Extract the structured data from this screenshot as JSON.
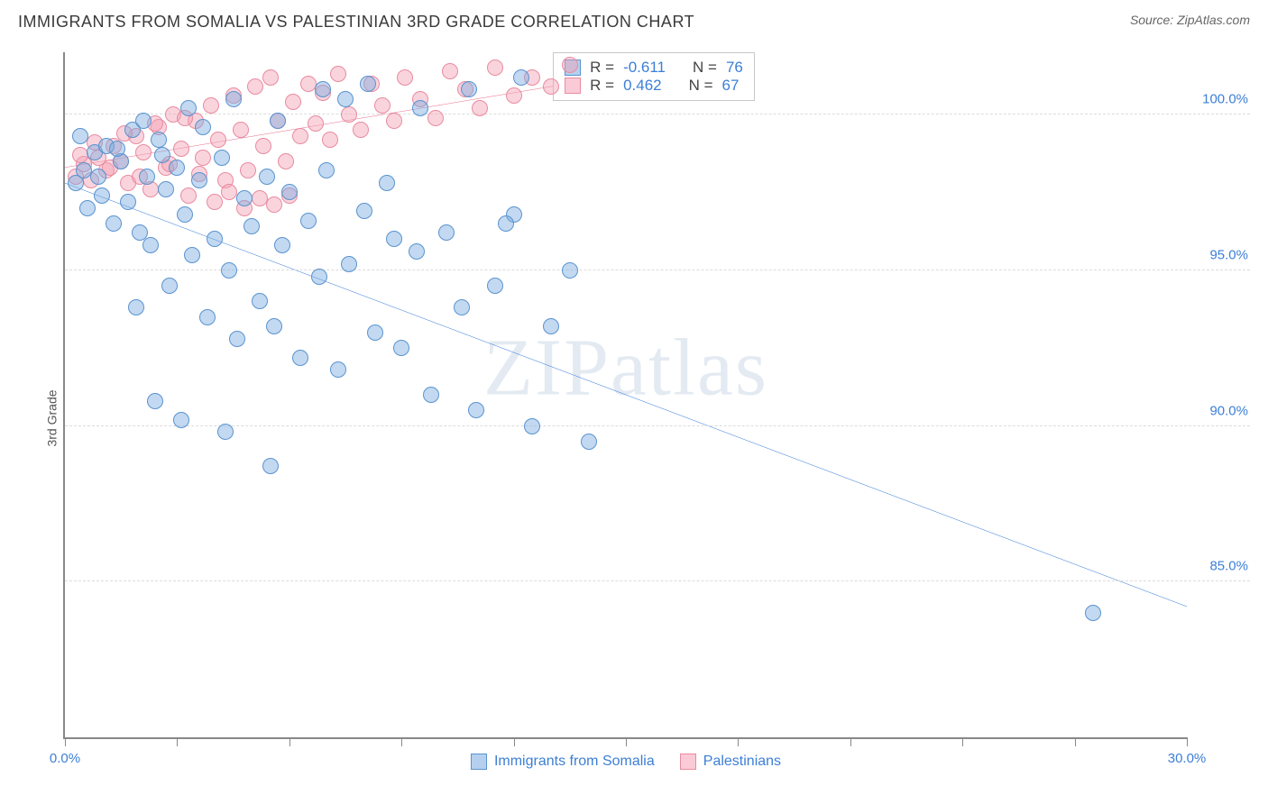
{
  "header": {
    "title": "IMMIGRANTS FROM SOMALIA VS PALESTINIAN 3RD GRADE CORRELATION CHART",
    "source": "Source: ZipAtlas.com"
  },
  "chart": {
    "type": "scatter",
    "y_axis_label": "3rd Grade",
    "watermark": "ZIPatlas",
    "xlim": [
      0,
      30
    ],
    "ylim": [
      80,
      102
    ],
    "y_gridlines": [
      85,
      90,
      95,
      100
    ],
    "y_tick_labels": [
      "85.0%",
      "90.0%",
      "95.0%",
      "100.0%"
    ],
    "x_ticks": [
      0,
      3,
      6,
      9,
      12,
      15,
      18,
      21,
      24,
      27,
      30
    ],
    "x_tick_labels": {
      "0": "0.0%",
      "30": "30.0%"
    },
    "background_color": "#ffffff",
    "grid_color": "#dcdcdc",
    "axis_color": "#888888",
    "label_fontsize": 15,
    "label_color": "#3c7fd6",
    "marker_radius": 9,
    "series": {
      "blue": {
        "name": "Immigrants from Somalia",
        "fill": "rgba(120,170,225,0.45)",
        "stroke": "#5a93cf",
        "r_value": "-0.611",
        "n_value": "76",
        "trend": {
          "x1": 0,
          "y1": 97.8,
          "x2": 30,
          "y2": 84.2,
          "color": "#2a73d6",
          "width": 2
        },
        "points": [
          [
            0.3,
            97.8
          ],
          [
            0.5,
            98.2
          ],
          [
            0.6,
            97.0
          ],
          [
            0.8,
            98.8
          ],
          [
            1.0,
            97.4
          ],
          [
            1.1,
            99.0
          ],
          [
            1.3,
            96.5
          ],
          [
            1.5,
            98.5
          ],
          [
            1.7,
            97.2
          ],
          [
            1.8,
            99.5
          ],
          [
            2.0,
            96.2
          ],
          [
            2.2,
            98.0
          ],
          [
            2.3,
            95.8
          ],
          [
            2.5,
            99.2
          ],
          [
            2.7,
            97.6
          ],
          [
            2.8,
            94.5
          ],
          [
            3.0,
            98.3
          ],
          [
            3.2,
            96.8
          ],
          [
            3.4,
            95.5
          ],
          [
            3.6,
            97.9
          ],
          [
            3.8,
            93.5
          ],
          [
            4.0,
            96.0
          ],
          [
            4.2,
            98.6
          ],
          [
            4.4,
            95.0
          ],
          [
            4.6,
            92.8
          ],
          [
            4.8,
            97.3
          ],
          [
            5.0,
            96.4
          ],
          [
            5.2,
            94.0
          ],
          [
            5.4,
            98.0
          ],
          [
            5.6,
            93.2
          ],
          [
            5.8,
            95.8
          ],
          [
            6.0,
            97.5
          ],
          [
            6.3,
            92.2
          ],
          [
            6.5,
            96.6
          ],
          [
            6.8,
            94.8
          ],
          [
            7.0,
            98.2
          ],
          [
            7.3,
            91.8
          ],
          [
            7.6,
            95.2
          ],
          [
            8.0,
            96.9
          ],
          [
            8.3,
            93.0
          ],
          [
            8.6,
            97.8
          ],
          [
            9.0,
            92.5
          ],
          [
            9.4,
            95.6
          ],
          [
            9.8,
            91.0
          ],
          [
            10.2,
            96.2
          ],
          [
            10.6,
            93.8
          ],
          [
            11.0,
            90.5
          ],
          [
            11.5,
            94.5
          ],
          [
            12.0,
            96.8
          ],
          [
            12.5,
            90.0
          ],
          [
            13.0,
            93.2
          ],
          [
            13.5,
            95.0
          ],
          [
            14.0,
            89.5
          ],
          [
            3.1,
            90.2
          ],
          [
            4.3,
            89.8
          ],
          [
            5.5,
            88.7
          ],
          [
            2.4,
            90.8
          ],
          [
            1.9,
            93.8
          ],
          [
            2.1,
            99.8
          ],
          [
            3.3,
            100.2
          ],
          [
            4.5,
            100.5
          ],
          [
            5.7,
            99.8
          ],
          [
            6.9,
            100.8
          ],
          [
            8.1,
            101.0
          ],
          [
            9.5,
            100.2
          ],
          [
            10.8,
            100.8
          ],
          [
            12.2,
            101.2
          ],
          [
            7.5,
            100.5
          ],
          [
            0.4,
            99.3
          ],
          [
            0.9,
            98.0
          ],
          [
            1.4,
            98.9
          ],
          [
            2.6,
            98.7
          ],
          [
            3.7,
            99.6
          ],
          [
            27.5,
            84.0
          ],
          [
            11.8,
            96.5
          ],
          [
            8.8,
            96.0
          ]
        ]
      },
      "pink": {
        "name": "Palestinians",
        "fill": "rgba(245,160,180,0.45)",
        "stroke": "#e88ba0",
        "r_value": "0.462",
        "n_value": "67",
        "trend": {
          "x1": 0,
          "y1": 98.3,
          "x2": 13.5,
          "y2": 101.0,
          "color": "#e86a8a",
          "width": 2
        },
        "points": [
          [
            0.3,
            98.0
          ],
          [
            0.5,
            98.4
          ],
          [
            0.7,
            97.9
          ],
          [
            0.9,
            98.6
          ],
          [
            1.1,
            98.2
          ],
          [
            1.3,
            99.0
          ],
          [
            1.5,
            98.5
          ],
          [
            1.7,
            97.8
          ],
          [
            1.9,
            99.3
          ],
          [
            2.1,
            98.8
          ],
          [
            2.3,
            97.6
          ],
          [
            2.5,
            99.6
          ],
          [
            2.7,
            98.3
          ],
          [
            2.9,
            100.0
          ],
          [
            3.1,
            98.9
          ],
          [
            3.3,
            97.4
          ],
          [
            3.5,
            99.8
          ],
          [
            3.7,
            98.6
          ],
          [
            3.9,
            100.3
          ],
          [
            4.1,
            99.2
          ],
          [
            4.3,
            97.9
          ],
          [
            4.5,
            100.6
          ],
          [
            4.7,
            99.5
          ],
          [
            4.9,
            98.2
          ],
          [
            5.1,
            100.9
          ],
          [
            5.3,
            99.0
          ],
          [
            5.5,
            101.2
          ],
          [
            5.7,
            99.8
          ],
          [
            5.9,
            98.5
          ],
          [
            6.1,
            100.4
          ],
          [
            6.3,
            99.3
          ],
          [
            6.5,
            101.0
          ],
          [
            6.7,
            99.7
          ],
          [
            6.9,
            100.7
          ],
          [
            7.1,
            99.2
          ],
          [
            7.3,
            101.3
          ],
          [
            7.6,
            100.0
          ],
          [
            7.9,
            99.5
          ],
          [
            8.2,
            101.0
          ],
          [
            8.5,
            100.3
          ],
          [
            8.8,
            99.8
          ],
          [
            9.1,
            101.2
          ],
          [
            9.5,
            100.5
          ],
          [
            9.9,
            99.9
          ],
          [
            10.3,
            101.4
          ],
          [
            10.7,
            100.8
          ],
          [
            11.1,
            100.2
          ],
          [
            11.5,
            101.5
          ],
          [
            12.0,
            100.6
          ],
          [
            12.5,
            101.2
          ],
          [
            13.0,
            100.9
          ],
          [
            13.5,
            101.6
          ],
          [
            0.4,
            98.7
          ],
          [
            0.8,
            99.1
          ],
          [
            1.2,
            98.3
          ],
          [
            1.6,
            99.4
          ],
          [
            2.0,
            98.0
          ],
          [
            2.4,
            99.7
          ],
          [
            2.8,
            98.4
          ],
          [
            3.2,
            99.9
          ],
          [
            3.6,
            98.1
          ],
          [
            4.0,
            97.2
          ],
          [
            4.4,
            97.5
          ],
          [
            4.8,
            97.0
          ],
          [
            5.2,
            97.3
          ],
          [
            5.6,
            97.1
          ],
          [
            6.0,
            97.4
          ]
        ]
      }
    },
    "stats_box": {
      "left_pct": 43.5,
      "top_pct": 0,
      "rows": [
        {
          "swatch": "blue",
          "r": "-0.611",
          "n": "76"
        },
        {
          "swatch": "pink",
          "r": "0.462",
          "n": "67"
        }
      ]
    },
    "bottom_legend": [
      {
        "swatch": "blue",
        "label": "Immigrants from Somalia"
      },
      {
        "swatch": "pink",
        "label": "Palestinians"
      }
    ]
  }
}
